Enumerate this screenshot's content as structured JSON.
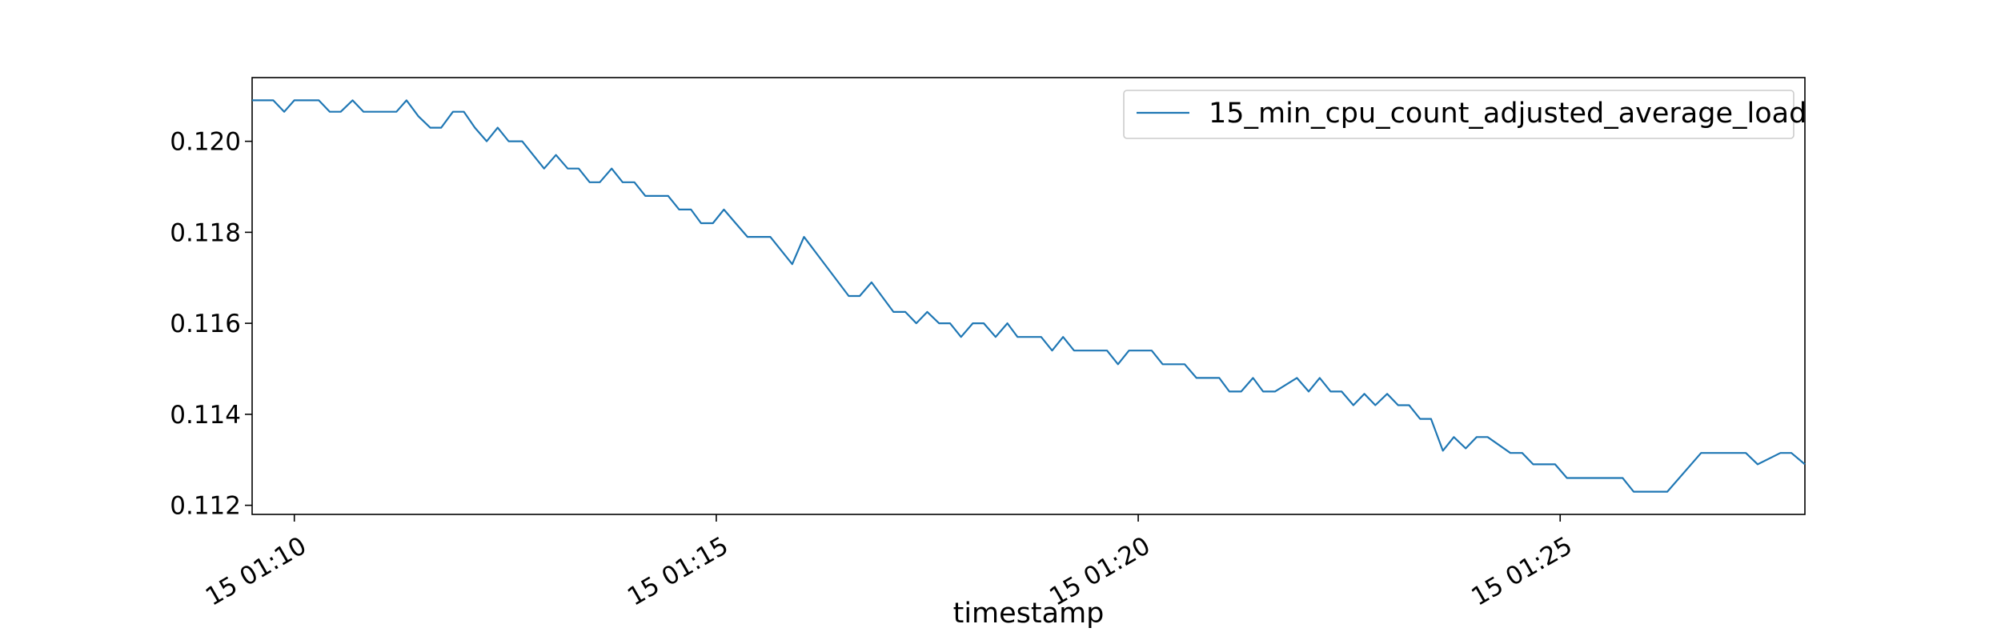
{
  "chart_data": {
    "type": "line",
    "title": "",
    "xlabel": "timestamp",
    "ylabel": "",
    "x_tick_labels": [
      "15 01:10",
      "15 01:15",
      "15 01:20",
      "15 01:25"
    ],
    "x_tick_minutes": [
      10,
      15,
      20,
      25
    ],
    "xlim_minutes": [
      9.5,
      27.9
    ],
    "y_tick_labels": [
      "0.112",
      "0.114",
      "0.116",
      "0.118",
      "0.120"
    ],
    "y_ticks": [
      0.112,
      0.114,
      0.116,
      0.118,
      0.12
    ],
    "ylim": [
      0.1118,
      0.1214
    ],
    "grid": false,
    "legend_position": "top-right",
    "series": [
      {
        "name": "15_min_cpu_count_adjusted_average_load",
        "color": "#1f77b4",
        "x_minutes": [
          9.5,
          9.75,
          9.88,
          10.0,
          10.29,
          10.42,
          10.55,
          10.69,
          10.82,
          11.21,
          11.33,
          11.47,
          11.61,
          11.74,
          11.88,
          12.01,
          12.14,
          12.28,
          12.41,
          12.54,
          12.7,
          12.83,
          12.96,
          13.1,
          13.24,
          13.37,
          13.5,
          13.62,
          13.76,
          13.89,
          14.03,
          14.16,
          14.29,
          14.43,
          14.56,
          14.7,
          14.82,
          14.96,
          15.09,
          15.23,
          15.37,
          15.64,
          15.9,
          16.04,
          16.57,
          16.7,
          16.84,
          17.1,
          17.24,
          17.37,
          17.5,
          17.64,
          17.77,
          17.9,
          18.04,
          18.17,
          18.31,
          18.45,
          18.57,
          18.71,
          18.85,
          18.98,
          19.11,
          19.24,
          19.63,
          19.76,
          19.89,
          20.16,
          20.29,
          20.55,
          20.69,
          20.96,
          21.08,
          21.22,
          21.36,
          21.48,
          21.62,
          21.88,
          22.02,
          22.15,
          22.28,
          22.41,
          22.55,
          22.68,
          22.81,
          22.95,
          23.08,
          23.21,
          23.34,
          23.47,
          23.61,
          23.74,
          23.88,
          24.01,
          24.14,
          24.41,
          24.55,
          24.68,
          24.94,
          25.08,
          25.21,
          25.74,
          25.87,
          26.27,
          26.67,
          27.07,
          27.2,
          27.34,
          27.61,
          27.74,
          27.9
        ],
        "y": [
          0.1209,
          0.1209,
          0.12065,
          0.1209,
          0.1209,
          0.12065,
          0.12065,
          0.1209,
          0.12065,
          0.12065,
          0.1209,
          0.12055,
          0.1203,
          0.1203,
          0.12065,
          0.12065,
          0.1203,
          0.12,
          0.1203,
          0.12,
          0.12,
          0.1197,
          0.1194,
          0.1197,
          0.1194,
          0.1194,
          0.1191,
          0.1191,
          0.1194,
          0.1191,
          0.1191,
          0.1188,
          0.1188,
          0.1188,
          0.1185,
          0.1185,
          0.1182,
          0.1182,
          0.1185,
          0.1182,
          0.1179,
          0.1179,
          0.1173,
          0.1179,
          0.1166,
          0.1166,
          0.1169,
          0.11625,
          0.11625,
          0.116,
          0.11625,
          0.116,
          0.116,
          0.1157,
          0.116,
          0.116,
          0.1157,
          0.116,
          0.1157,
          0.1157,
          0.1157,
          0.1154,
          0.1157,
          0.1154,
          0.1154,
          0.1151,
          0.1154,
          0.1154,
          0.1151,
          0.1151,
          0.1148,
          0.1148,
          0.1145,
          0.1145,
          0.1148,
          0.1145,
          0.1145,
          0.1148,
          0.1145,
          0.1148,
          0.1145,
          0.1145,
          0.1142,
          0.11445,
          0.1142,
          0.11445,
          0.1142,
          0.1142,
          0.1139,
          0.1139,
          0.1132,
          0.1135,
          0.11325,
          0.1135,
          0.1135,
          0.11315,
          0.11315,
          0.1129,
          0.1129,
          0.1126,
          0.1126,
          0.1126,
          0.1123,
          0.1123,
          0.11315,
          0.11315,
          0.11315,
          0.1129,
          0.11315,
          0.11315,
          0.1129
        ]
      }
    ]
  }
}
